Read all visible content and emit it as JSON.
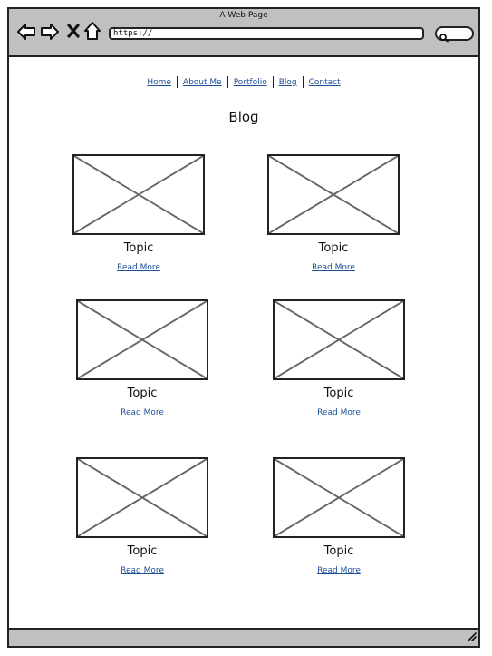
{
  "window": {
    "title": "A Web Page"
  },
  "browser": {
    "url": "https://"
  },
  "nav": {
    "items": [
      "Home",
      "About Me",
      "Portfolio",
      "Blog",
      "Contact"
    ]
  },
  "page": {
    "title": "Blog"
  },
  "posts": [
    {
      "title": "Topic",
      "link": "Read More"
    },
    {
      "title": "Topic",
      "link": "Read More"
    },
    {
      "title": "Topic",
      "link": "Read More"
    },
    {
      "title": "Topic",
      "link": "Read More"
    },
    {
      "title": "Topic",
      "link": "Read More"
    },
    {
      "title": "Topic",
      "link": "Read More"
    }
  ]
}
